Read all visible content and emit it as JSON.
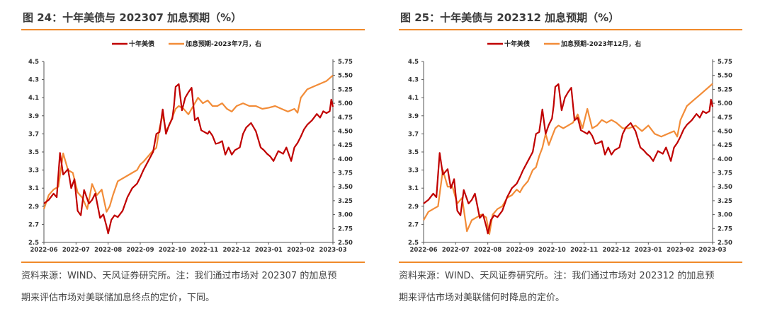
{
  "panels": [
    {
      "title": "图 24：十年美债与 202307 加息预期（%）",
      "note_line1": "资料来源：WIND、天风证券研究所。注：我们通过市场对 202307 的加息预",
      "note_line2": "期来评估市场对美联储加息终点的定价，下同。"
    },
    {
      "title": "图 25：十年美债与 202312 加息预期（%）",
      "note_line1": "资料来源：WIND、天风证券研究所。注：我们通过市场对 202312 的加息预",
      "note_line2": "期来评估市场对美联储何时降息的定价。"
    }
  ],
  "colors": {
    "accent_rule": "#f08a2a",
    "series_red": "#c00000",
    "series_orange": "#f28c38"
  },
  "chart_data": [
    {
      "type": "line",
      "title": "十年美债与 202307 加息预期（%）",
      "legend": [
        "十年美债",
        "加息预期-2023年7月，右"
      ],
      "legend_position": "top-center",
      "x_ticks": [
        "2022-06",
        "2022-07",
        "2022-08",
        "2022-09",
        "2022-10",
        "2022-11",
        "2022-12",
        "2023-01",
        "2023-02",
        "2023-03"
      ],
      "y_left": {
        "range": [
          2.5,
          4.5
        ],
        "ticks": [
          "2.5",
          "2.7",
          "2.9",
          "3.1",
          "3.3",
          "3.5",
          "3.7",
          "3.9",
          "4.1",
          "4.3",
          "4.5"
        ]
      },
      "y_right": {
        "range": [
          2.5,
          5.75
        ],
        "ticks": [
          "2.50",
          "2.75",
          "3.00",
          "3.25",
          "3.50",
          "3.75",
          "4.00",
          "4.25",
          "4.50",
          "4.75",
          "5.00",
          "5.25",
          "5.50",
          "5.75"
        ]
      },
      "x_range": [
        0,
        9
      ],
      "series": [
        {
          "name": "十年美债",
          "axis": "left",
          "x": [
            0,
            0.15,
            0.3,
            0.4,
            0.5,
            0.6,
            0.75,
            0.85,
            0.95,
            1.05,
            1.15,
            1.25,
            1.4,
            1.5,
            1.6,
            1.75,
            1.85,
            1.95,
            2.0,
            2.1,
            2.2,
            2.3,
            2.45,
            2.6,
            2.75,
            2.9,
            3.0,
            3.1,
            3.25,
            3.4,
            3.5,
            3.6,
            3.7,
            3.8,
            3.9,
            4.0,
            4.05,
            4.1,
            4.2,
            4.3,
            4.4,
            4.5,
            4.6,
            4.7,
            4.8,
            4.9,
            5.0,
            5.1,
            5.15,
            5.25,
            5.35,
            5.45,
            5.55,
            5.65,
            5.75,
            5.85,
            5.95,
            6.1,
            6.2,
            6.3,
            6.45,
            6.6,
            6.75,
            6.85,
            6.95,
            7.05,
            7.15,
            7.3,
            7.45,
            7.55,
            7.7,
            7.8,
            7.9,
            8.0,
            8.1,
            8.2,
            8.35,
            8.5,
            8.6,
            8.7,
            8.8,
            8.9,
            8.95,
            9.0
          ],
          "y": [
            2.93,
            2.97,
            3.04,
            3.0,
            3.49,
            3.25,
            3.31,
            3.1,
            3.2,
            2.85,
            2.8,
            3.08,
            2.93,
            2.97,
            3.04,
            2.77,
            2.81,
            2.68,
            2.6,
            2.75,
            2.8,
            2.78,
            2.85,
            3.0,
            3.1,
            3.15,
            3.22,
            3.3,
            3.4,
            3.5,
            3.7,
            3.72,
            3.97,
            3.7,
            3.8,
            3.87,
            4.01,
            4.22,
            4.25,
            3.96,
            4.1,
            4.16,
            4.21,
            3.85,
            3.88,
            3.74,
            3.72,
            3.7,
            3.73,
            3.68,
            3.59,
            3.6,
            3.62,
            3.47,
            3.55,
            3.47,
            3.52,
            3.55,
            3.7,
            3.77,
            3.82,
            3.73,
            3.55,
            3.52,
            3.48,
            3.45,
            3.4,
            3.51,
            3.48,
            3.55,
            3.4,
            3.55,
            3.6,
            3.67,
            3.75,
            3.8,
            3.85,
            3.92,
            3.88,
            3.95,
            3.93,
            3.95,
            4.08,
            4.0
          ]
        },
        {
          "name": "加息预期-2023年7月",
          "axis": "right",
          "x": [
            0,
            0.15,
            0.3,
            0.45,
            0.6,
            0.75,
            0.9,
            1.05,
            1.2,
            1.35,
            1.5,
            1.65,
            1.8,
            1.95,
            2.05,
            2.15,
            2.3,
            2.45,
            2.6,
            2.75,
            2.9,
            3.0,
            3.1,
            3.25,
            3.4,
            3.5,
            3.6,
            3.7,
            3.8,
            3.9,
            4.0,
            4.1,
            4.2,
            4.35,
            4.5,
            4.65,
            4.8,
            4.95,
            5.1,
            5.25,
            5.4,
            5.55,
            5.7,
            5.85,
            6.0,
            6.2,
            6.4,
            6.6,
            6.8,
            7.0,
            7.2,
            7.4,
            7.6,
            7.8,
            7.9,
            8.0,
            8.2,
            8.4,
            8.6,
            8.8,
            9.0
          ],
          "y": [
            3.1,
            3.35,
            3.45,
            3.5,
            4.1,
            3.8,
            3.75,
            3.4,
            3.3,
            3.1,
            3.55,
            3.35,
            3.45,
            3.05,
            3.15,
            3.35,
            3.6,
            3.65,
            3.7,
            3.75,
            3.8,
            3.9,
            3.95,
            4.05,
            4.15,
            4.2,
            4.55,
            4.8,
            4.5,
            4.6,
            4.75,
            4.9,
            4.95,
            4.9,
            4.8,
            4.95,
            5.1,
            5.0,
            5.05,
            4.95,
            4.95,
            5.0,
            4.9,
            4.85,
            4.95,
            5.0,
            4.95,
            4.95,
            4.9,
            4.92,
            4.95,
            4.9,
            4.85,
            4.9,
            4.83,
            5.1,
            5.25,
            5.3,
            5.35,
            5.4,
            5.5
          ]
        }
      ]
    },
    {
      "type": "line",
      "title": "十年美债与 202312 加息预期（%）",
      "legend": [
        "十年美债",
        "加息预期-2023年12月，右"
      ],
      "legend_position": "top-center",
      "x_ticks": [
        "2022-06",
        "2022-07",
        "2022-08",
        "2022-09",
        "2022-10",
        "2022-11",
        "2022-12",
        "2023-01",
        "2023-02",
        "2023-03"
      ],
      "y_left": {
        "range": [
          2.5,
          4.5
        ],
        "ticks": [
          "2.5",
          "2.7",
          "2.9",
          "3.1",
          "3.3",
          "3.5",
          "3.7",
          "3.9",
          "4.1",
          "4.3",
          "4.5"
        ]
      },
      "y_right": {
        "range": [
          2.5,
          5.75
        ],
        "ticks": [
          "2.50",
          "2.75",
          "3.00",
          "3.25",
          "3.50",
          "3.75",
          "4.00",
          "4.25",
          "4.50",
          "4.75",
          "5.00",
          "5.25",
          "5.50",
          "5.75"
        ]
      },
      "x_range": [
        0,
        9
      ],
      "series": [
        {
          "name": "十年美债",
          "axis": "left",
          "x": [
            0,
            0.15,
            0.3,
            0.4,
            0.5,
            0.6,
            0.75,
            0.85,
            0.95,
            1.05,
            1.15,
            1.25,
            1.4,
            1.5,
            1.6,
            1.75,
            1.85,
            1.95,
            2.0,
            2.1,
            2.2,
            2.3,
            2.45,
            2.6,
            2.75,
            2.9,
            3.0,
            3.1,
            3.25,
            3.4,
            3.5,
            3.6,
            3.7,
            3.8,
            3.9,
            4.0,
            4.05,
            4.1,
            4.2,
            4.3,
            4.4,
            4.5,
            4.6,
            4.7,
            4.8,
            4.9,
            5.0,
            5.1,
            5.15,
            5.25,
            5.35,
            5.45,
            5.55,
            5.65,
            5.75,
            5.85,
            5.95,
            6.1,
            6.2,
            6.3,
            6.45,
            6.6,
            6.75,
            6.85,
            6.95,
            7.05,
            7.15,
            7.3,
            7.45,
            7.55,
            7.7,
            7.8,
            7.9,
            8.0,
            8.1,
            8.2,
            8.35,
            8.5,
            8.6,
            8.7,
            8.8,
            8.9,
            8.95,
            9.0
          ],
          "y": [
            2.93,
            2.97,
            3.04,
            3.0,
            3.49,
            3.25,
            3.31,
            3.1,
            3.2,
            2.85,
            2.8,
            3.08,
            2.93,
            2.97,
            3.04,
            2.77,
            2.81,
            2.68,
            2.6,
            2.75,
            2.8,
            2.78,
            2.85,
            3.0,
            3.1,
            3.15,
            3.22,
            3.3,
            3.4,
            3.5,
            3.7,
            3.72,
            3.97,
            3.7,
            3.8,
            3.87,
            4.01,
            4.22,
            4.25,
            3.96,
            4.1,
            4.16,
            4.21,
            3.85,
            3.88,
            3.74,
            3.72,
            3.7,
            3.73,
            3.68,
            3.59,
            3.6,
            3.62,
            3.47,
            3.55,
            3.47,
            3.52,
            3.55,
            3.7,
            3.77,
            3.82,
            3.73,
            3.55,
            3.52,
            3.48,
            3.45,
            3.4,
            3.51,
            3.48,
            3.55,
            3.4,
            3.55,
            3.6,
            3.67,
            3.75,
            3.8,
            3.85,
            3.92,
            3.88,
            3.95,
            3.93,
            3.95,
            4.08,
            4.0
          ]
        },
        {
          "name": "加息预期-2023年12月",
          "axis": "right",
          "x": [
            0,
            0.15,
            0.3,
            0.45,
            0.6,
            0.75,
            0.9,
            1.05,
            1.2,
            1.35,
            1.5,
            1.65,
            1.8,
            1.95,
            2.05,
            2.15,
            2.3,
            2.45,
            2.6,
            2.75,
            2.9,
            3.0,
            3.1,
            3.25,
            3.4,
            3.5,
            3.6,
            3.7,
            3.8,
            3.9,
            4.0,
            4.1,
            4.2,
            4.35,
            4.5,
            4.65,
            4.8,
            4.95,
            5.1,
            5.25,
            5.4,
            5.55,
            5.7,
            5.85,
            6.0,
            6.2,
            6.4,
            6.6,
            6.8,
            7.0,
            7.2,
            7.4,
            7.6,
            7.8,
            7.9,
            8.0,
            8.2,
            8.4,
            8.6,
            8.8,
            9.0
          ],
          "y": [
            2.9,
            3.05,
            3.1,
            3.15,
            3.8,
            3.5,
            3.5,
            3.2,
            3.3,
            2.7,
            2.9,
            2.95,
            3.0,
            2.95,
            2.65,
            3.0,
            3.1,
            3.15,
            3.3,
            3.35,
            3.45,
            3.4,
            3.5,
            3.6,
            3.8,
            3.85,
            4.05,
            4.2,
            4.45,
            4.25,
            4.4,
            4.55,
            4.6,
            4.55,
            4.6,
            4.65,
            4.8,
            4.55,
            4.9,
            4.55,
            4.6,
            4.7,
            4.65,
            4.7,
            4.65,
            4.55,
            4.55,
            4.6,
            4.5,
            4.6,
            4.45,
            4.4,
            4.45,
            4.5,
            4.4,
            4.7,
            4.95,
            5.05,
            5.15,
            5.25,
            5.35
          ]
        }
      ]
    }
  ]
}
